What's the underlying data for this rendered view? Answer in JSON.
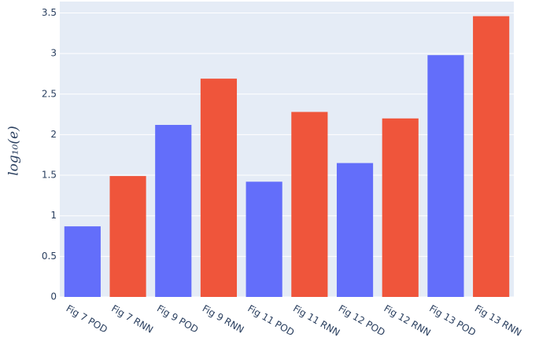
{
  "chart_data": {
    "type": "bar",
    "y_label": "log₁₀(e)",
    "categories": [
      "Fig 7 POD",
      "Fig 7 RNN",
      "Fig 9 POD",
      "Fig 9 RNN",
      "Fig 11 POD",
      "Fig 11 RNN",
      "Fig 12 POD",
      "Fig 12 RNN",
      "Fig 13 POD",
      "Fig 13 RNN"
    ],
    "values": [
      0.87,
      1.49,
      2.12,
      2.69,
      1.42,
      2.28,
      1.65,
      2.2,
      2.98,
      3.46
    ],
    "colors": [
      "#636efa",
      "#ef553b",
      "#636efa",
      "#ef553b",
      "#636efa",
      "#ef553b",
      "#636efa",
      "#ef553b",
      "#636efa",
      "#ef553b"
    ],
    "ylim": [
      0,
      3.64
    ],
    "yticks": [
      0,
      0.5,
      1,
      1.5,
      2,
      2.5,
      3,
      3.5
    ],
    "grid": true
  }
}
